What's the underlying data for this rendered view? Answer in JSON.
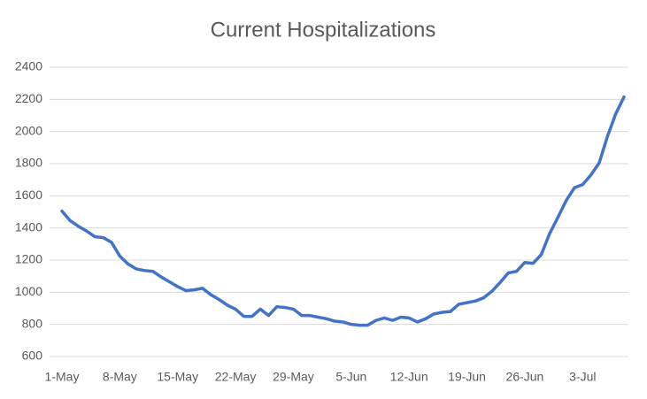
{
  "chart_data": {
    "type": "line",
    "title": "Current Hospitalizations",
    "categories": [
      "1-May",
      null,
      null,
      null,
      null,
      null,
      null,
      "8-May",
      null,
      null,
      null,
      null,
      null,
      null,
      "15-May",
      null,
      null,
      null,
      null,
      null,
      null,
      "22-May",
      null,
      null,
      null,
      null,
      null,
      null,
      "29-May",
      null,
      null,
      null,
      null,
      null,
      null,
      "5-Jun",
      null,
      null,
      null,
      null,
      null,
      null,
      "12-Jun",
      null,
      null,
      null,
      null,
      null,
      null,
      "19-Jun",
      null,
      null,
      null,
      null,
      null,
      null,
      "26-Jun",
      null,
      null,
      null,
      null,
      null,
      null,
      "3-Jul",
      null,
      null,
      null,
      null,
      null
    ],
    "series": [
      {
        "name": "Current Hospitalizations",
        "color": "#4472c4",
        "values": [
          1505,
          1445,
          1410,
          1380,
          1345,
          1340,
          1310,
          1225,
          1175,
          1145,
          1135,
          1130,
          1095,
          1065,
          1035,
          1010,
          1015,
          1025,
          985,
          955,
          920,
          895,
          850,
          850,
          895,
          855,
          910,
          905,
          895,
          855,
          855,
          845,
          835,
          820,
          815,
          800,
          795,
          795,
          825,
          840,
          825,
          845,
          840,
          815,
          835,
          865,
          875,
          880,
          925,
          935,
          945,
          965,
          1005,
          1060,
          1120,
          1130,
          1185,
          1180,
          1235,
          1365,
          1465,
          1570,
          1650,
          1670,
          1730,
          1805,
          1970,
          2110,
          2215
        ]
      }
    ],
    "ylim": [
      600,
      2400
    ],
    "yticks": [
      600,
      800,
      1000,
      1200,
      1400,
      1600,
      1800,
      2000,
      2200,
      2400
    ],
    "grid": true
  }
}
